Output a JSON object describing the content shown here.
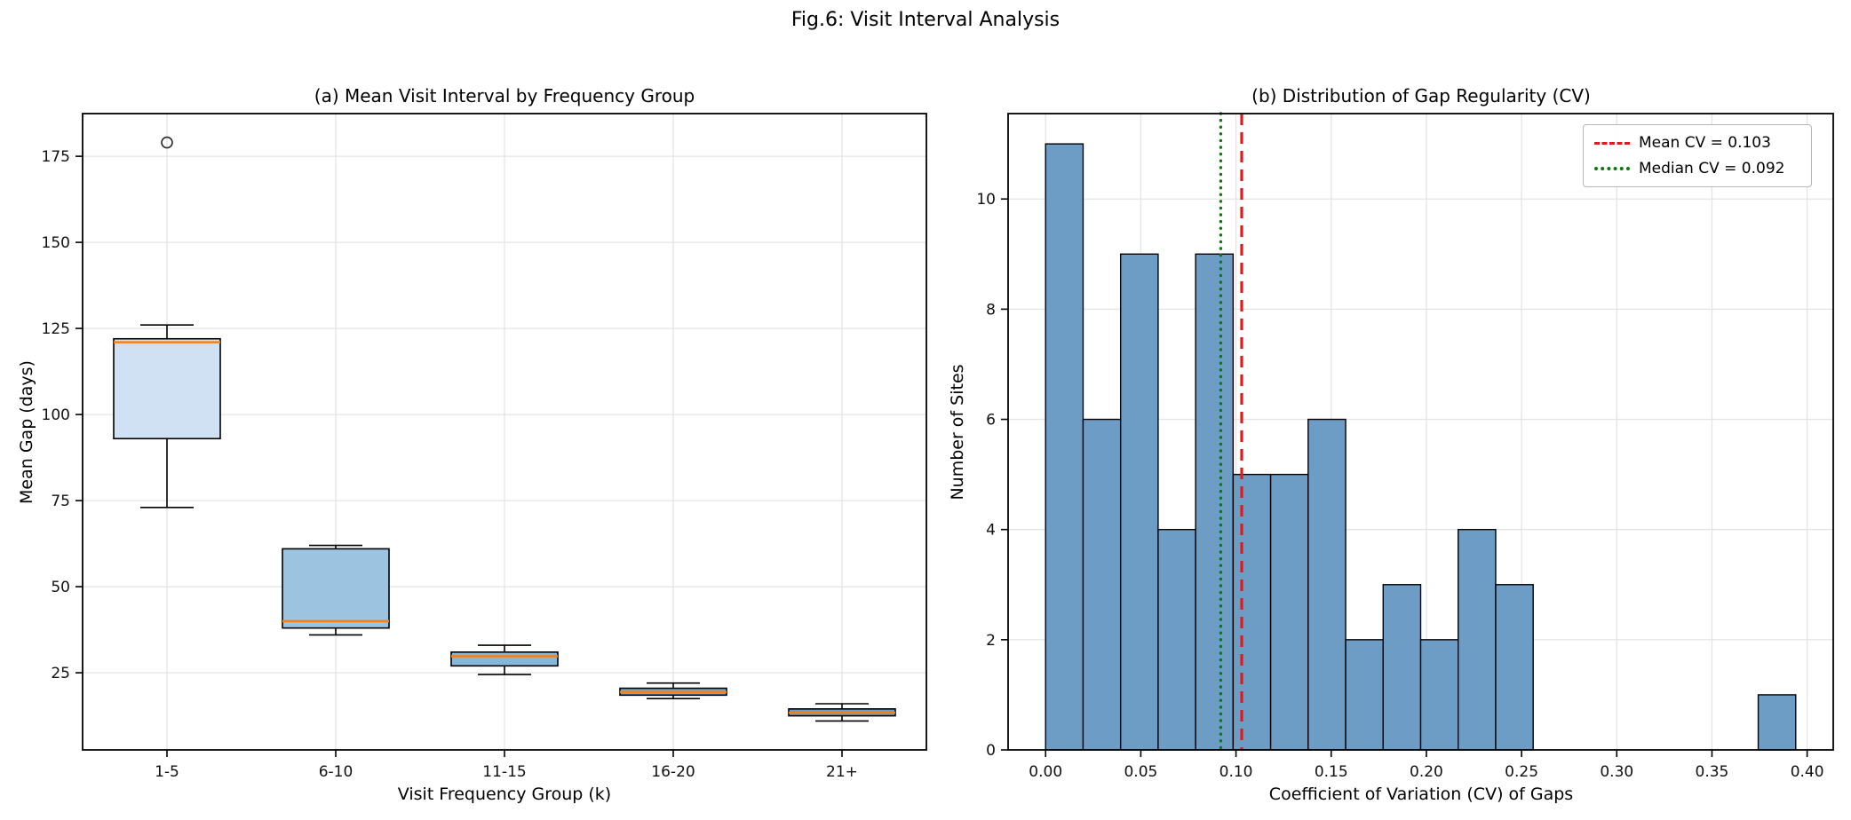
{
  "figure": {
    "title": "Fig.6: Visit Interval Analysis",
    "background": "#ffffff",
    "grid_color": "#e4e4e4",
    "spine_color": "#000000",
    "tick_label_color": "#111111"
  },
  "chart_data": [
    {
      "type": "box",
      "title": "(a) Mean Visit Interval by Frequency Group",
      "xlabel": "Visit Frequency Group (k)",
      "ylabel": "Mean Gap (days)",
      "categories": [
        "1-5",
        "6-10",
        "11-15",
        "16-20",
        "21+"
      ],
      "ylim": [
        2.6,
        187.4
      ],
      "yticks": [
        25,
        50,
        75,
        100,
        125,
        150,
        175
      ],
      "grid": true,
      "median_color": "#ff7f0e",
      "box_edge_color": "#000000",
      "boxes": [
        {
          "whislo": 73,
          "q1": 93,
          "med": 121,
          "q3": 122,
          "whishi": 126,
          "fliers": [
            179
          ],
          "fill": "#cfe1f2"
        },
        {
          "whislo": 36,
          "q1": 38,
          "med": 40,
          "q3": 61,
          "whishi": 62,
          "fliers": [],
          "fill": "#9cc4e0"
        },
        {
          "whislo": 24.5,
          "q1": 27,
          "med": 29.8,
          "q3": 31,
          "whishi": 33,
          "fliers": [],
          "fill": "#86b6d8"
        },
        {
          "whislo": 17.5,
          "q1": 18.5,
          "med": 19.4,
          "q3": 20.5,
          "whishi": 22,
          "fliers": [],
          "fill": "#74a9cf"
        },
        {
          "whislo": 11,
          "q1": 12.5,
          "med": 13.4,
          "q3": 14.5,
          "whishi": 16,
          "fliers": [],
          "fill": "#699fc8"
        }
      ]
    },
    {
      "type": "histogram",
      "title": "(b) Distribution of Gap Regularity (CV)",
      "xlabel": "Coefficient of Variation (CV) of Gaps",
      "ylabel": "Number of Sites",
      "bin_start": 0.0,
      "bin_width": 0.0197,
      "counts": [
        11,
        6,
        9,
        4,
        9,
        5,
        5,
        6,
        2,
        3,
        2,
        4,
        3,
        0,
        0,
        0,
        0,
        0,
        0,
        1
      ],
      "xlim": [
        -0.0197,
        0.4137
      ],
      "ylim": [
        0,
        11.55
      ],
      "xticks": [
        0.0,
        0.05,
        0.1,
        0.15,
        0.2,
        0.25,
        0.3,
        0.35,
        0.4
      ],
      "xtick_labels": [
        "0.00",
        "0.05",
        "0.10",
        "0.15",
        "0.20",
        "0.25",
        "0.30",
        "0.35",
        "0.40"
      ],
      "yticks": [
        0,
        2,
        4,
        6,
        8,
        10
      ],
      "grid": true,
      "bar_fill": "#6d9dc4",
      "bar_edge": "#000000",
      "mean_line": {
        "value": 0.103,
        "color": "#e31a1c",
        "style": "dashed",
        "label": "Mean CV = 0.103"
      },
      "median_line": {
        "value": 0.092,
        "color": "#0b7a0b",
        "style": "dotted",
        "label": "Median CV = 0.092"
      },
      "legend_position": "upper right"
    }
  ]
}
